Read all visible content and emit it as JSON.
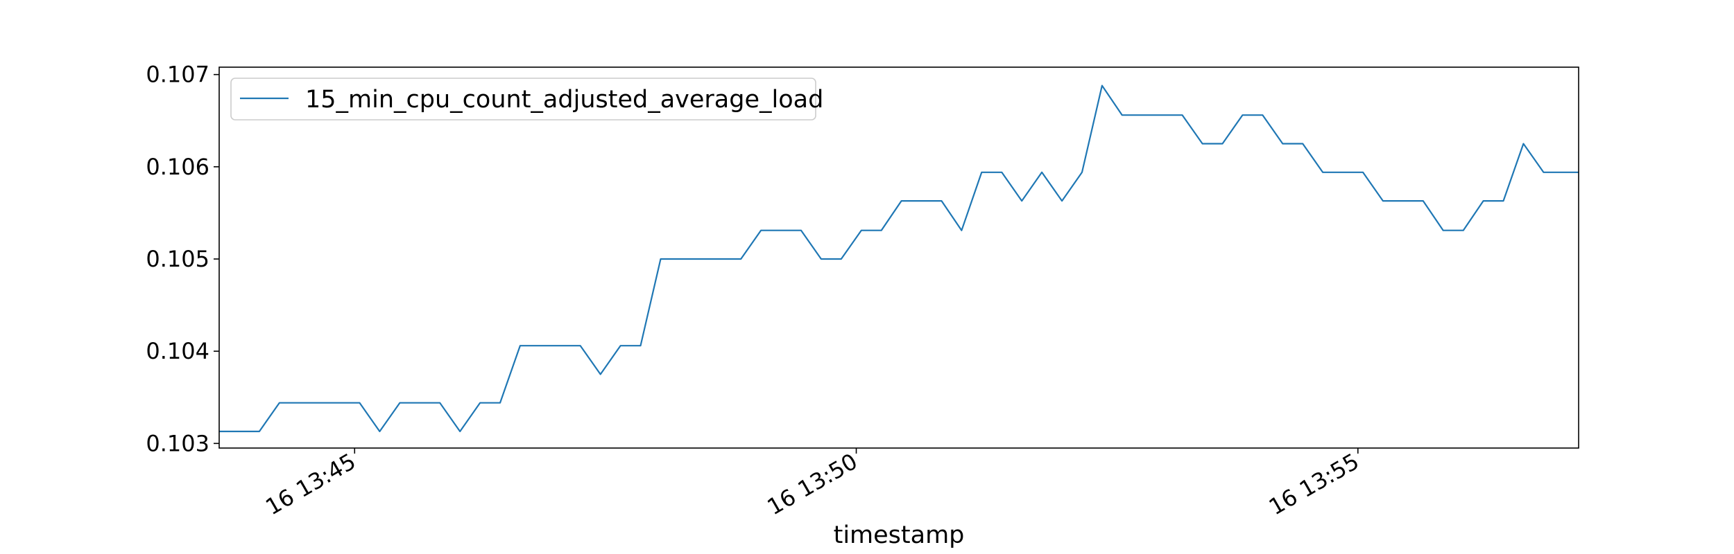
{
  "chart_data": {
    "type": "line",
    "title": "",
    "xlabel": "timestamp",
    "ylabel": "",
    "x_tick_labels": [
      "16 13:45",
      "16 13:50",
      "16 13:55"
    ],
    "y_tick_labels": [
      "0.103",
      "0.104",
      "0.105",
      "0.106",
      "0.107"
    ],
    "y_ticks": [
      0.103,
      0.104,
      0.105,
      0.106,
      0.107
    ],
    "ylim": [
      0.10295,
      0.10708
    ],
    "xlim": [
      "13:43:39",
      "13:57:12"
    ],
    "x_ticks": [
      "13:45:00",
      "13:50:00",
      "13:55:00"
    ],
    "grid": false,
    "legend": "top-left",
    "series": [
      {
        "name": "15_min_cpu_count_adjusted_average_load",
        "color": "#1f77b4",
        "x": [
          "13:43:39",
          "13:44:03",
          "13:44:15",
          "13:44:27",
          "13:44:39",
          "13:44:51",
          "13:45:03",
          "13:45:15",
          "13:45:27",
          "13:45:39",
          "13:45:51",
          "13:46:03",
          "13:46:15",
          "13:46:27",
          "13:46:39",
          "13:46:51",
          "13:47:03",
          "13:47:15",
          "13:47:27",
          "13:47:39",
          "13:47:51",
          "13:48:03",
          "13:48:15",
          "13:48:27",
          "13:48:39",
          "13:48:51",
          "13:49:03",
          "13:49:15",
          "13:49:27",
          "13:49:39",
          "13:49:51",
          "13:50:03",
          "13:50:15",
          "13:50:27",
          "13:50:39",
          "13:50:51",
          "13:51:03",
          "13:51:15",
          "13:51:27",
          "13:51:39",
          "13:51:51",
          "13:52:03",
          "13:52:15",
          "13:52:27",
          "13:52:39",
          "13:52:51",
          "13:53:03",
          "13:53:15",
          "13:53:27",
          "13:53:39",
          "13:53:51",
          "13:54:03",
          "13:54:15",
          "13:54:27",
          "13:54:39",
          "13:54:51",
          "13:55:03",
          "13:55:15",
          "13:55:27",
          "13:55:39",
          "13:55:51",
          "13:56:03",
          "13:56:15",
          "13:56:27",
          "13:56:39",
          "13:56:51",
          "13:57:03",
          "13:57:12"
        ],
        "values": [
          0.10313,
          0.10313,
          0.10344,
          0.10344,
          0.10344,
          0.10344,
          0.10344,
          0.10313,
          0.10344,
          0.10344,
          0.10344,
          0.10313,
          0.10344,
          0.10344,
          0.10406,
          0.10406,
          0.10406,
          0.10406,
          0.10375,
          0.10406,
          0.10406,
          0.105,
          0.105,
          0.105,
          0.105,
          0.105,
          0.10531,
          0.10531,
          0.10531,
          0.105,
          0.105,
          0.10531,
          0.10531,
          0.10563,
          0.10563,
          0.10563,
          0.10531,
          0.10594,
          0.10594,
          0.10563,
          0.10594,
          0.10563,
          0.10594,
          0.10688,
          0.10656,
          0.10656,
          0.10656,
          0.10656,
          0.10625,
          0.10625,
          0.10656,
          0.10656,
          0.10625,
          0.10625,
          0.10594,
          0.10594,
          0.10594,
          0.10563,
          0.10563,
          0.10563,
          0.10531,
          0.10531,
          0.10563,
          0.10563,
          0.10625,
          0.10594,
          0.10594,
          0.10594
        ]
      }
    ]
  }
}
